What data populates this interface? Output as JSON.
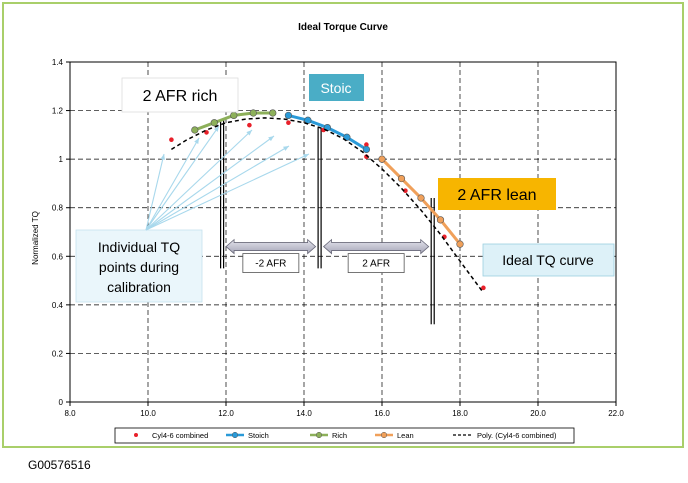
{
  "figure_id": "G00576516",
  "chart_data": {
    "type": "scatter",
    "title": "Ideal Torque Curve",
    "xlabel": "",
    "ylabel": "Normalized TQ",
    "xlim": [
      8.0,
      22.0
    ],
    "ylim": [
      0,
      1.4
    ],
    "x_ticks": [
      "8.0",
      "10.0",
      "12.0",
      "14.0",
      "16.0",
      "18.0",
      "20.0",
      "22.0"
    ],
    "y_ticks": [
      "0",
      "0.2",
      "0.4",
      "0.6",
      "0.8",
      "1",
      "1.2",
      "1.4"
    ],
    "grid": true,
    "legend_position": "bottom",
    "series": [
      {
        "name": "Cyl4-6 combined",
        "kind": "points",
        "color": "#e8202a",
        "points": [
          [
            10.6,
            1.08
          ],
          [
            11.5,
            1.11
          ],
          [
            12.6,
            1.14
          ],
          [
            13.6,
            1.15
          ],
          [
            14.5,
            1.12
          ],
          [
            15.6,
            1.06
          ],
          [
            15.6,
            1.01
          ],
          [
            16.6,
            0.87
          ],
          [
            17.6,
            0.68
          ],
          [
            18.6,
            0.47
          ]
        ]
      },
      {
        "name": "Stoich",
        "kind": "line",
        "color": "#2a9ad8",
        "points": [
          [
            13.6,
            1.18
          ],
          [
            14.1,
            1.16
          ],
          [
            14.6,
            1.13
          ],
          [
            15.1,
            1.09
          ],
          [
            15.6,
            1.04
          ]
        ]
      },
      {
        "name": "Rich",
        "kind": "line",
        "color": "#8db05a",
        "points": [
          [
            11.2,
            1.12
          ],
          [
            11.7,
            1.15
          ],
          [
            12.2,
            1.18
          ],
          [
            12.7,
            1.19
          ],
          [
            13.2,
            1.19
          ]
        ]
      },
      {
        "name": "Lean",
        "kind": "line",
        "color": "#f0a05a",
        "points": [
          [
            16.0,
            1.0
          ],
          [
            16.5,
            0.92
          ],
          [
            17.0,
            0.84
          ],
          [
            17.5,
            0.75
          ],
          [
            18.0,
            0.65
          ]
        ]
      },
      {
        "name": "Poly. (Cyl4-6 combined)",
        "kind": "trend",
        "color": "#000000",
        "points": [
          [
            10.6,
            1.04
          ],
          [
            11.0,
            1.08
          ],
          [
            11.5,
            1.12
          ],
          [
            12.0,
            1.15
          ],
          [
            12.5,
            1.165
          ],
          [
            13.0,
            1.17
          ],
          [
            13.5,
            1.165
          ],
          [
            14.0,
            1.15
          ],
          [
            14.5,
            1.125
          ],
          [
            15.0,
            1.085
          ],
          [
            15.5,
            1.03
          ],
          [
            16.0,
            0.96
          ],
          [
            16.5,
            0.88
          ],
          [
            17.0,
            0.79
          ],
          [
            17.5,
            0.69
          ],
          [
            18.0,
            0.58
          ],
          [
            18.6,
            0.45
          ]
        ]
      }
    ],
    "vertical_markers": [
      {
        "x": 11.9,
        "y_top": 1.16,
        "y_bottom": 0.55
      },
      {
        "x": 14.4,
        "y_top": 1.13,
        "y_bottom": 0.55
      },
      {
        "x": 17.3,
        "y_top": 0.84,
        "y_bottom": 0.32
      }
    ],
    "range_arrows": [
      {
        "from": 11.9,
        "to": 14.4,
        "y": 0.64,
        "label": "-2 AFR"
      },
      {
        "from": 14.4,
        "to": 17.3,
        "y": 0.64,
        "label": "2 AFR"
      }
    ],
    "callouts": {
      "rich": "2 AFR rich",
      "stoic": "Stoic",
      "lean": "2 AFR lean",
      "ideal": "Ideal TQ curve",
      "individual": [
        "Individual TQ",
        "points during",
        "calibration"
      ]
    }
  }
}
